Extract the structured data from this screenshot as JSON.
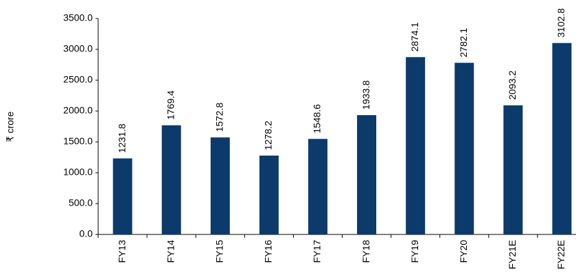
{
  "chart_data": {
    "type": "bar",
    "ylabel": "₹ crore",
    "categories": [
      "FY13",
      "FY14",
      "FY15",
      "FY16",
      "FY17",
      "FY18",
      "FY19",
      "FY20",
      "FY21E",
      "FY22E"
    ],
    "values": [
      1231.8,
      1769.4,
      1572.8,
      1278.2,
      1548.6,
      1933.8,
      2874.1,
      2782.1,
      2093.2,
      3102.8
    ],
    "color": "#0b3a6b",
    "ylim": [
      0,
      3500
    ],
    "yticks": [
      {
        "value": 0,
        "label": "0.0"
      },
      {
        "value": 500,
        "label": "500.0"
      },
      {
        "value": 1000,
        "label": "1000.0"
      },
      {
        "value": 1500,
        "label": "1500.0"
      },
      {
        "value": 2000,
        "label": "2000.0"
      },
      {
        "value": 2500,
        "label": "2500.0"
      },
      {
        "value": 3000,
        "label": "3000.0"
      },
      {
        "value": 3500,
        "label": "3500.0"
      }
    ],
    "grid": false
  }
}
